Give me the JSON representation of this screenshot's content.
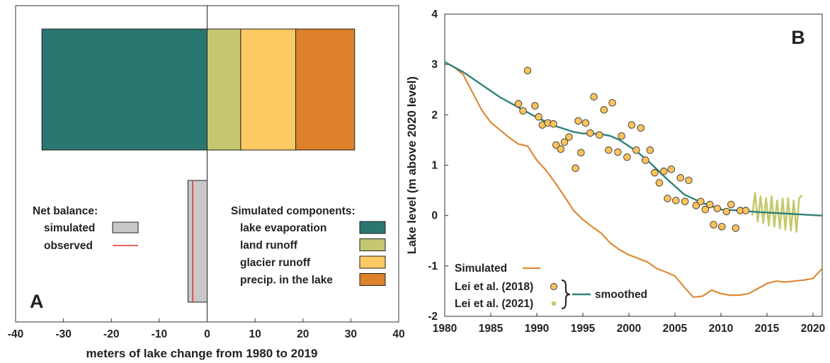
{
  "chart_data": [
    {
      "type": "bar",
      "panel_label": "A",
      "xlabel": "meters of lake change from 1980 to 2019",
      "xlim": [
        -40,
        40
      ],
      "xticks": [
        -40,
        -30,
        -20,
        -10,
        0,
        10,
        20,
        30,
        40
      ],
      "grid": false,
      "components_title": "Simulated components:",
      "components": [
        {
          "name": "lake evaporation",
          "start": 0,
          "value": -34.5,
          "color": "#2a7670"
        },
        {
          "name": "land runoff",
          "start": 0,
          "value": 7.0,
          "color": "#c4c76f"
        },
        {
          "name": "glacier runoff",
          "start": 7.0,
          "value": 11.5,
          "color": "#fdc962"
        },
        {
          "name": "precip. in the lake",
          "start": 18.5,
          "value": 12.3,
          "color": "#dd812b"
        }
      ],
      "net_balance_title": "Net balance:",
      "net_balance": {
        "simulated": {
          "name": "simulated",
          "value": -4.0,
          "color": "#c8c8c8"
        },
        "observed": {
          "name": "observed",
          "value": -3.0,
          "color": "#e0302a"
        }
      }
    },
    {
      "type": "line",
      "panel_label": "B",
      "xlabel": "",
      "ylabel": "Lake level (m above 2020 level)",
      "xlim": [
        1980,
        2021
      ],
      "ylim": [
        -2,
        4
      ],
      "xticks": [
        1980,
        1985,
        1990,
        1995,
        2000,
        2005,
        2010,
        2015,
        2020
      ],
      "yticks": [
        -2,
        -1,
        0,
        1,
        2,
        3,
        4
      ],
      "grid": false,
      "series": [
        {
          "name": "Simulated",
          "kind": "line",
          "color": "#dd8a35",
          "x": [
            1980,
            1981,
            1982,
            1983,
            1984,
            1985,
            1986,
            1987,
            1988,
            1989,
            1990,
            1991,
            1992,
            1993,
            1994,
            1995,
            1996,
            1997,
            1998,
            1999,
            2000,
            2001,
            2002,
            2003,
            2004,
            2005,
            2006,
            2007,
            2008,
            2009,
            2010,
            2011,
            2012,
            2013,
            2014,
            2015,
            2016,
            2017,
            2018,
            2019,
            2020,
            2021
          ],
          "y": [
            3.05,
            2.95,
            2.8,
            2.45,
            2.1,
            1.85,
            1.7,
            1.55,
            1.42,
            1.38,
            1.1,
            0.9,
            0.65,
            0.38,
            0.1,
            -0.08,
            -0.22,
            -0.35,
            -0.55,
            -0.68,
            -0.78,
            -0.85,
            -0.92,
            -1.05,
            -1.12,
            -1.2,
            -1.42,
            -1.62,
            -1.6,
            -1.48,
            -1.55,
            -1.58,
            -1.58,
            -1.55,
            -1.45,
            -1.35,
            -1.3,
            -1.32,
            -1.3,
            -1.28,
            -1.25,
            -1.05
          ]
        },
        {
          "name": "Lei et al. (2018)",
          "kind": "scatter",
          "color": "#fcc25c",
          "x": [
            1988,
            1988.5,
            1989,
            1989.8,
            1990.2,
            1990.6,
            1991.2,
            1991.8,
            1992.1,
            1992.6,
            1993,
            1993.5,
            1994.2,
            1994.5,
            1994.8,
            1995.3,
            1995.8,
            1996.2,
            1996.8,
            1997.3,
            1997.8,
            1998.2,
            1998.8,
            1999.2,
            1999.8,
            2000.3,
            2000.8,
            2001.3,
            2001.8,
            2002.3,
            2002.8,
            2003.3,
            2003.8,
            2004.2,
            2004.6,
            2005.1,
            2005.6,
            2006.1,
            2006.5,
            2007.3,
            2007.8,
            2008.3,
            2008.8,
            2009.2,
            2009.6,
            2010.1,
            2010.6,
            2011.1,
            2011.6,
            2012.1,
            2012.7
          ],
          "y": [
            2.22,
            2.08,
            2.88,
            2.18,
            1.96,
            1.8,
            1.84,
            1.82,
            1.4,
            1.32,
            1.46,
            1.56,
            0.94,
            1.88,
            1.25,
            1.84,
            1.64,
            2.36,
            1.6,
            2.1,
            1.3,
            2.24,
            1.26,
            1.58,
            1.16,
            1.8,
            1.3,
            1.74,
            1.1,
            1.3,
            0.85,
            0.65,
            0.88,
            0.34,
            0.92,
            0.3,
            0.75,
            0.28,
            0.7,
            0.2,
            0.28,
            0.12,
            0.22,
            -0.18,
            0.14,
            -0.22,
            0.08,
            0.22,
            -0.25,
            0.1,
            0.1
          ],
          "_marker_note": "sorted points keep pairs tidy"
        },
        {
          "name": "Lei et al. (2021)",
          "kind": "line-oscillating",
          "color": "#c5c96d",
          "x": [
            2013.4,
            2013.7,
            2014.0,
            2014.3,
            2014.6,
            2014.9,
            2015.2,
            2015.5,
            2015.8,
            2016.1,
            2016.4,
            2016.7,
            2017.0,
            2017.3,
            2017.6,
            2017.9,
            2018.2,
            2018.5,
            2018.8
          ],
          "y": [
            0.0,
            0.45,
            -0.12,
            0.38,
            -0.15,
            0.35,
            -0.2,
            0.38,
            -0.22,
            0.3,
            -0.25,
            0.34,
            -0.28,
            0.35,
            -0.3,
            0.3,
            -0.32,
            0.35,
            0.4
          ]
        },
        {
          "name": "smoothed",
          "kind": "line",
          "color": "#2f8178",
          "x": [
            1980,
            1982,
            1984,
            1986,
            1988,
            1990,
            1992,
            1994,
            1995,
            1996,
            1997,
            1998,
            1999,
            2000,
            2001,
            2002,
            2004,
            2006,
            2008,
            2010,
            2012,
            2014,
            2016,
            2018,
            2020,
            2021
          ],
          "y": [
            3.05,
            2.85,
            2.6,
            2.35,
            2.15,
            1.95,
            1.78,
            1.66,
            1.63,
            1.63,
            1.62,
            1.58,
            1.5,
            1.38,
            1.25,
            1.1,
            0.75,
            0.42,
            0.25,
            0.12,
            0.1,
            0.07,
            0.05,
            0.03,
            0.01,
            0.0
          ]
        }
      ],
      "legend": {
        "placement": "bottom-left",
        "items": [
          "Simulated",
          "Lei et al. (2018)",
          "Lei et al. (2021)",
          "smoothed"
        ]
      }
    }
  ]
}
